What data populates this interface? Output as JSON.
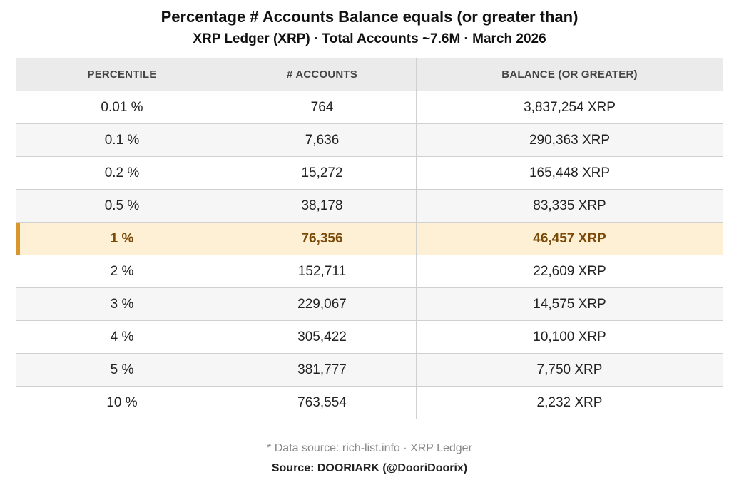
{
  "header": {
    "title": "Percentage # Accounts Balance equals (or greater than)",
    "subtitle": "XRP Ledger (XRP) · Total Accounts ~7.6M · March 2026"
  },
  "table": {
    "columns": [
      "PERCENTILE",
      "# ACCOUNTS",
      "BALANCE (OR GREATER)"
    ],
    "rows": [
      {
        "percentile": "0.01 %",
        "accounts": "764",
        "balance": "3,837,254 XRP"
      },
      {
        "percentile": "0.1 %",
        "accounts": "7,636",
        "balance": "290,363 XRP"
      },
      {
        "percentile": "0.2 %",
        "accounts": "15,272",
        "balance": "165,448 XRP"
      },
      {
        "percentile": "0.5 %",
        "accounts": "38,178",
        "balance": "83,335 XRP"
      },
      {
        "percentile": "1 %",
        "accounts": "76,356",
        "balance": "46,457 XRP"
      },
      {
        "percentile": "2 %",
        "accounts": "152,711",
        "balance": "22,609 XRP"
      },
      {
        "percentile": "3 %",
        "accounts": "229,067",
        "balance": "14,575 XRP"
      },
      {
        "percentile": "4 %",
        "accounts": "305,422",
        "balance": "10,100 XRP"
      },
      {
        "percentile": "5 %",
        "accounts": "381,777",
        "balance": "7,750 XRP"
      },
      {
        "percentile": "10 %",
        "accounts": "763,554",
        "balance": "2,232 XRP"
      }
    ],
    "highlighted_row": "1 %",
    "highlight_color": "#fdf0d5",
    "highlight_accent_color": "#d9962f",
    "highlight_text_color": "#7a4a08"
  },
  "footer": {
    "note": "* Data source: rich-list.info · XRP Ledger",
    "source": "Source: DOORIARK (@DooriDoorix)"
  }
}
